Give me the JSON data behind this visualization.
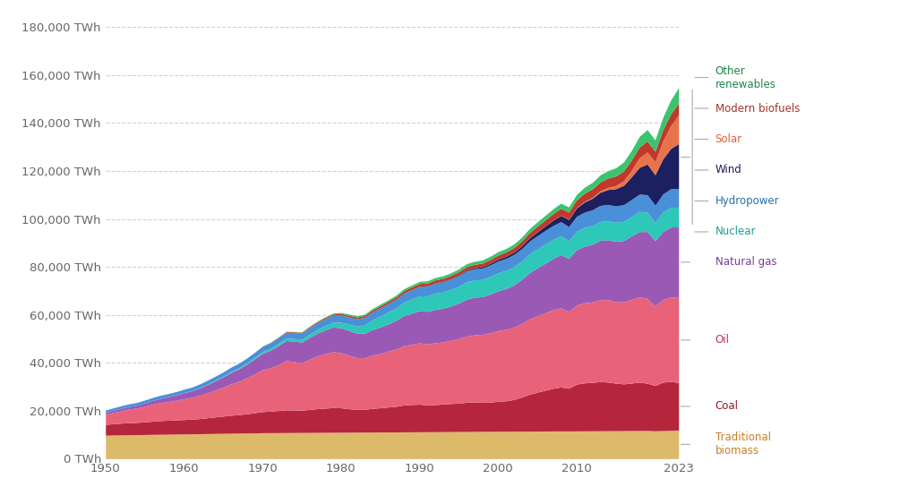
{
  "years": [
    1950,
    1951,
    1952,
    1953,
    1954,
    1955,
    1956,
    1957,
    1958,
    1959,
    1960,
    1961,
    1962,
    1963,
    1964,
    1965,
    1966,
    1967,
    1968,
    1969,
    1970,
    1971,
    1972,
    1973,
    1974,
    1975,
    1976,
    1977,
    1978,
    1979,
    1980,
    1981,
    1982,
    1983,
    1984,
    1985,
    1986,
    1987,
    1988,
    1989,
    1990,
    1991,
    1992,
    1993,
    1994,
    1995,
    1996,
    1997,
    1998,
    1999,
    2000,
    2001,
    2002,
    2003,
    2004,
    2005,
    2006,
    2007,
    2008,
    2009,
    2010,
    2011,
    2012,
    2013,
    2014,
    2015,
    2016,
    2017,
    2018,
    2019,
    2020,
    2021,
    2022,
    2023
  ],
  "sources": {
    "Traditional biomass": [
      9800,
      9850,
      9900,
      9950,
      10000,
      10050,
      10100,
      10150,
      10200,
      10250,
      10300,
      10350,
      10400,
      10450,
      10500,
      10550,
      10600,
      10650,
      10700,
      10750,
      10800,
      10820,
      10840,
      10860,
      10880,
      10900,
      10920,
      10940,
      10960,
      10980,
      11000,
      11020,
      11040,
      11060,
      11080,
      11100,
      11120,
      11140,
      11160,
      11180,
      11200,
      11220,
      11240,
      11260,
      11280,
      11300,
      11320,
      11340,
      11360,
      11380,
      11400,
      11420,
      11440,
      11460,
      11480,
      11500,
      11520,
      11540,
      11560,
      11540,
      11560,
      11580,
      11600,
      11620,
      11640,
      11660,
      11680,
      11700,
      11720,
      11740,
      11600,
      11700,
      11800,
      11900
    ],
    "Coal": [
      4500,
      4700,
      4900,
      5000,
      5100,
      5300,
      5500,
      5700,
      5800,
      5900,
      6000,
      6100,
      6300,
      6600,
      6900,
      7200,
      7500,
      7700,
      8000,
      8400,
      8800,
      9000,
      9200,
      9500,
      9400,
      9300,
      9600,
      9900,
      10100,
      10300,
      10200,
      9800,
      9500,
      9500,
      9900,
      10100,
      10400,
      10700,
      11200,
      11400,
      11500,
      11200,
      11300,
      11500,
      11700,
      11800,
      12200,
      12300,
      12100,
      12200,
      12500,
      12700,
      13200,
      14200,
      15400,
      16200,
      17000,
      17800,
      18300,
      17800,
      19500,
      20000,
      20200,
      20500,
      20300,
      19800,
      19500,
      19800,
      20200,
      19700,
      18900,
      20200,
      20400,
      19800
    ],
    "Oil": [
      4200,
      4700,
      5200,
      5700,
      6000,
      6500,
      7100,
      7500,
      7800,
      8200,
      8700,
      9100,
      9700,
      10400,
      11200,
      12100,
      13100,
      13900,
      15000,
      16200,
      17500,
      18100,
      19200,
      20500,
      20200,
      19800,
      21000,
      22000,
      22800,
      23300,
      23000,
      22300,
      21600,
      21500,
      22200,
      22600,
      23300,
      23900,
      24800,
      25100,
      25600,
      25400,
      25800,
      25900,
      26400,
      27000,
      27600,
      28000,
      28400,
      28900,
      29500,
      29800,
      30200,
      30700,
      31400,
      31900,
      32300,
      32800,
      33000,
      32100,
      33000,
      33400,
      33600,
      34200,
      34400,
      34000,
      34200,
      35000,
      35500,
      35400,
      33200,
      34500,
      35200,
      35500
    ],
    "Natural gas": [
      800,
      900,
      1000,
      1100,
      1200,
      1400,
      1600,
      1800,
      2000,
      2200,
      2500,
      2700,
      3100,
      3500,
      3900,
      4300,
      4800,
      5200,
      5700,
      6300,
      6800,
      7300,
      7900,
      8400,
      8500,
      8600,
      9100,
      9500,
      9900,
      10300,
      10400,
      10400,
      10200,
      10300,
      10700,
      11100,
      11400,
      11900,
      12500,
      13000,
      13400,
      13600,
      13900,
      14100,
      14300,
      14800,
      15400,
      15700,
      15700,
      16200,
      16600,
      17000,
      17600,
      18400,
      19300,
      20000,
      20700,
      21400,
      22200,
      22100,
      23100,
      23600,
      24100,
      24700,
      25000,
      25200,
      25600,
      26400,
      27300,
      27900,
      27200,
      28400,
      29200,
      29500
    ],
    "Nuclear": [
      0,
      0,
      0,
      0,
      0,
      0,
      10,
      20,
      30,
      50,
      70,
      100,
      130,
      180,
      230,
      290,
      380,
      470,
      570,
      650,
      720,
      810,
      900,
      1020,
      1100,
      1200,
      1400,
      1600,
      1800,
      2000,
      2300,
      2600,
      2900,
      3400,
      4000,
      4600,
      4900,
      5200,
      5600,
      5900,
      6200,
      6500,
      6800,
      6800,
      6900,
      7000,
      7300,
      7200,
      7200,
      7300,
      7500,
      7600,
      7600,
      7600,
      7800,
      7900,
      8000,
      7900,
      7900,
      7300,
      7700,
      7900,
      7800,
      7900,
      7900,
      7900,
      8000,
      8100,
      8400,
      8000,
      7600,
      8100,
      8300,
      8100
    ],
    "Hydropower": [
      1000,
      1030,
      1060,
      1100,
      1140,
      1180,
      1220,
      1270,
      1320,
      1370,
      1420,
      1470,
      1530,
      1600,
      1670,
      1740,
      1820,
      1900,
      1990,
      2080,
      2180,
      2260,
      2340,
      2420,
      2480,
      2540,
      2640,
      2740,
      2830,
      2920,
      3010,
      3060,
      3100,
      3200,
      3350,
      3430,
      3530,
      3650,
      3780,
      3870,
      3960,
      4050,
      4150,
      4230,
      4340,
      4430,
      4560,
      4640,
      4710,
      4820,
      4940,
      5000,
      5080,
      5200,
      5350,
      5500,
      5650,
      5800,
      5900,
      5950,
      6200,
      6350,
      6500,
      6700,
      6800,
      6850,
      6950,
      7100,
      7200,
      7350,
      7200,
      7500,
      7700,
      7900
    ],
    "Wind": [
      0,
      0,
      0,
      0,
      0,
      0,
      0,
      0,
      0,
      0,
      0,
      0,
      0,
      0,
      0,
      0,
      0,
      0,
      0,
      0,
      0,
      0,
      0,
      0,
      0,
      0,
      0,
      0,
      0,
      0,
      0,
      0,
      0,
      0,
      0,
      10,
      20,
      30,
      50,
      70,
      100,
      130,
      160,
      190,
      230,
      280,
      350,
      440,
      550,
      660,
      790,
      860,
      960,
      1110,
      1320,
      1580,
      1880,
      2200,
      2600,
      2950,
      3500,
      4200,
      4800,
      5500,
      6200,
      7200,
      8100,
      9500,
      11200,
      12800,
      12700,
      14700,
      16800,
      18700
    ],
    "Solar": [
      0,
      0,
      0,
      0,
      0,
      0,
      0,
      0,
      0,
      0,
      0,
      0,
      0,
      0,
      0,
      0,
      0,
      0,
      0,
      0,
      0,
      0,
      0,
      0,
      0,
      0,
      0,
      0,
      0,
      0,
      0,
      0,
      0,
      0,
      0,
      0,
      0,
      0,
      0,
      0,
      0,
      0,
      0,
      0,
      0,
      0,
      0,
      0,
      0,
      0,
      5,
      5,
      5,
      10,
      15,
      20,
      30,
      50,
      80,
      100,
      160,
      250,
      400,
      600,
      900,
      1300,
      1900,
      2700,
      4000,
      5000,
      5400,
      7500,
      9600,
      12000
    ],
    "Modern biofuels": [
      0,
      0,
      0,
      0,
      0,
      0,
      0,
      0,
      0,
      0,
      0,
      0,
      0,
      0,
      0,
      0,
      0,
      0,
      0,
      0,
      100,
      150,
      200,
      250,
      300,
      350,
      400,
      450,
      500,
      550,
      600,
      650,
      700,
      750,
      800,
      850,
      900,
      950,
      1000,
      1050,
      1100,
      1150,
      1200,
      1250,
      1300,
      1350,
      1400,
      1450,
      1520,
      1600,
      1700,
      1800,
      1920,
      2050,
      2200,
      2350,
      2500,
      2700,
      2900,
      3000,
      3200,
      3400,
      3500,
      3700,
      3900,
      4000,
      4100,
      4300,
      4500,
      4600,
      4400,
      4600,
      4800,
      4900
    ],
    "Other renewables": [
      0,
      0,
      0,
      0,
      0,
      0,
      0,
      0,
      0,
      0,
      0,
      0,
      0,
      0,
      0,
      0,
      0,
      0,
      0,
      0,
      100,
      120,
      140,
      160,
      180,
      200,
      250,
      300,
      350,
      400,
      450,
      500,
      550,
      580,
      620,
      660,
      700,
      750,
      800,
      850,
      900,
      950,
      1000,
      1050,
      1100,
      1150,
      1200,
      1250,
      1300,
      1350,
      1400,
      1450,
      1500,
      1600,
      1700,
      1800,
      1900,
      2000,
      2100,
      2150,
      2300,
      2500,
      2700,
      2900,
      3100,
      3400,
      3700,
      4000,
      4400,
      4800,
      4700,
      5200,
      5800,
      6500
    ]
  },
  "colors": {
    "Traditional biomass": "#ddb96a",
    "Coal": "#b5263c",
    "Oil": "#e8637a",
    "Natural gas": "#9b59b6",
    "Nuclear": "#2dc8b8",
    "Hydropower": "#4a90d9",
    "Wind": "#1c2060",
    "Solar": "#e8734a",
    "Modern biofuels": "#c0392b",
    "Other renewables": "#3bc46e"
  },
  "label_colors": {
    "Traditional biomass": "#c87d2a",
    "Coal": "#8b1a2a",
    "Oil": "#c03060",
    "Natural gas": "#7d3c98",
    "Nuclear": "#1a9e91",
    "Hydropower": "#2471a3",
    "Wind": "#1a1a5e",
    "Solar": "#e06030",
    "Modern biofuels": "#a93226",
    "Other renewables": "#1e8449"
  },
  "ylim": [
    0,
    185000
  ],
  "yticks": [
    0,
    20000,
    40000,
    60000,
    80000,
    100000,
    120000,
    140000,
    160000,
    180000
  ],
  "xticks": [
    1950,
    1960,
    1970,
    1980,
    1990,
    2000,
    2010,
    2023
  ],
  "background_color": "#ffffff",
  "grid_color": "#cccccc"
}
